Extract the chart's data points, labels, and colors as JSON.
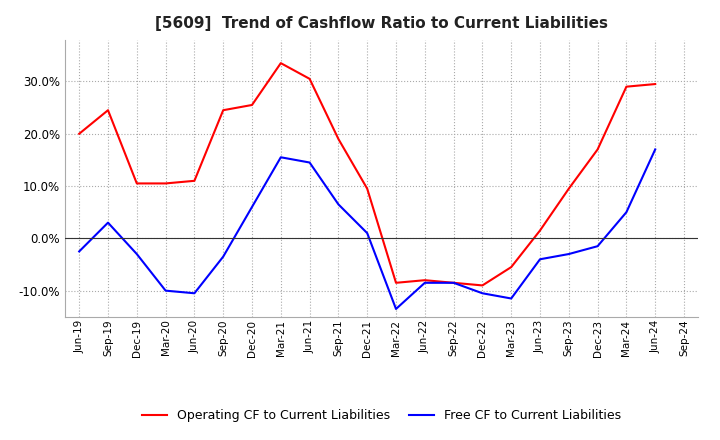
{
  "title": "[5609]  Trend of Cashflow Ratio to Current Liabilities",
  "x_labels": [
    "Jun-19",
    "Sep-19",
    "Dec-19",
    "Mar-20",
    "Jun-20",
    "Sep-20",
    "Dec-20",
    "Mar-21",
    "Jun-21",
    "Sep-21",
    "Dec-21",
    "Mar-22",
    "Jun-22",
    "Sep-22",
    "Dec-22",
    "Mar-23",
    "Jun-23",
    "Sep-23",
    "Dec-23",
    "Mar-24",
    "Jun-24",
    "Sep-24"
  ],
  "operating_cf": [
    20.0,
    24.5,
    10.5,
    10.5,
    11.0,
    24.5,
    25.5,
    33.5,
    30.5,
    19.0,
    9.5,
    -8.5,
    -8.0,
    -8.5,
    -9.0,
    -5.5,
    1.5,
    9.5,
    17.0,
    29.0,
    29.5,
    null
  ],
  "free_cf": [
    -2.5,
    3.0,
    -3.0,
    -10.0,
    -10.5,
    -3.5,
    6.0,
    15.5,
    14.5,
    6.5,
    1.0,
    -13.5,
    -8.5,
    -8.5,
    -10.5,
    -11.5,
    -4.0,
    -3.0,
    -1.5,
    5.0,
    17.0,
    null
  ],
  "ylim": [
    -15,
    38
  ],
  "yticks": [
    -10.0,
    0.0,
    10.0,
    20.0,
    30.0
  ],
  "operating_color": "#ff0000",
  "free_color": "#0000ff",
  "background_color": "#ffffff",
  "grid_color": "#aaaaaa",
  "title_fontsize": 11,
  "legend_labels": [
    "Operating CF to Current Liabilities",
    "Free CF to Current Liabilities"
  ]
}
